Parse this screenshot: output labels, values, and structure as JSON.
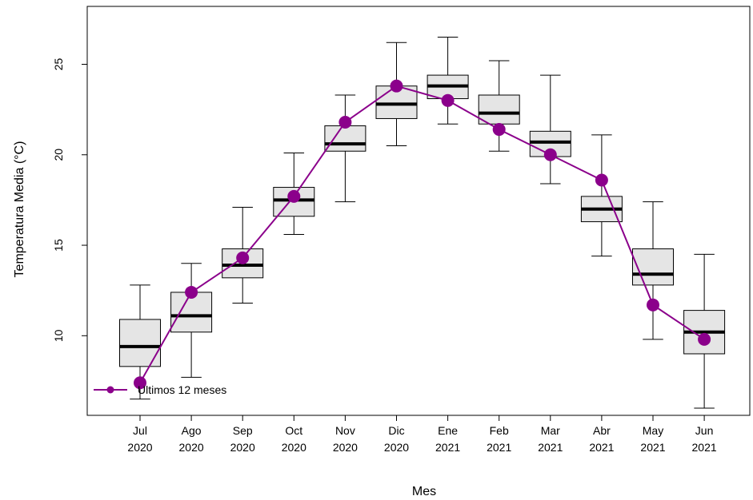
{
  "chart_data": {
    "type": "box",
    "title": "",
    "xlabel": "Mes",
    "ylabel": "Temperatura Media (°C)",
    "categories": [
      [
        "Jul",
        "2020"
      ],
      [
        "Ago",
        "2020"
      ],
      [
        "Sep",
        "2020"
      ],
      [
        "Oct",
        "2020"
      ],
      [
        "Nov",
        "2020"
      ],
      [
        "Dic",
        "2020"
      ],
      [
        "Ene",
        "2021"
      ],
      [
        "Feb",
        "2021"
      ],
      [
        "Mar",
        "2021"
      ],
      [
        "Abr",
        "2021"
      ],
      [
        "May",
        "2021"
      ],
      [
        "Jun",
        "2021"
      ]
    ],
    "ylim": [
      5.6,
      28.2
    ],
    "yticks": [
      10,
      15,
      20,
      25
    ],
    "boxes": [
      {
        "min": 6.5,
        "q1": 8.3,
        "median": 9.4,
        "q3": 10.9,
        "max": 12.8
      },
      {
        "min": 7.7,
        "q1": 10.2,
        "median": 11.1,
        "q3": 12.4,
        "max": 14.0
      },
      {
        "min": 11.8,
        "q1": 13.2,
        "median": 13.9,
        "q3": 14.8,
        "max": 17.1
      },
      {
        "min": 15.6,
        "q1": 16.6,
        "median": 17.5,
        "q3": 18.2,
        "max": 20.1
      },
      {
        "min": 17.4,
        "q1": 20.2,
        "median": 20.6,
        "q3": 21.6,
        "max": 23.3
      },
      {
        "min": 20.5,
        "q1": 22.0,
        "median": 22.8,
        "q3": 23.8,
        "max": 26.2
      },
      {
        "min": 21.7,
        "q1": 23.1,
        "median": 23.8,
        "q3": 24.4,
        "max": 26.5
      },
      {
        "min": 20.2,
        "q1": 21.7,
        "median": 22.3,
        "q3": 23.3,
        "max": 25.2
      },
      {
        "min": 18.4,
        "q1": 19.9,
        "median": 20.7,
        "q3": 21.3,
        "max": 24.4
      },
      {
        "min": 14.4,
        "q1": 16.3,
        "median": 17.0,
        "q3": 17.7,
        "max": 21.1
      },
      {
        "min": 9.8,
        "q1": 12.8,
        "median": 13.4,
        "q3": 14.8,
        "max": 17.4
      },
      {
        "min": 6.0,
        "q1": 9.0,
        "median": 10.2,
        "q3": 11.4,
        "max": 14.5
      }
    ],
    "series": [
      {
        "name": "Ultimos 12 meses",
        "values": [
          7.4,
          12.4,
          14.3,
          17.7,
          21.8,
          23.8,
          23.0,
          21.4,
          20.0,
          18.6,
          11.7,
          9.8
        ],
        "color": "#8B008B"
      }
    ],
    "box_fill": "#e5e5e5",
    "legend": "bottom-left",
    "grid": false
  }
}
